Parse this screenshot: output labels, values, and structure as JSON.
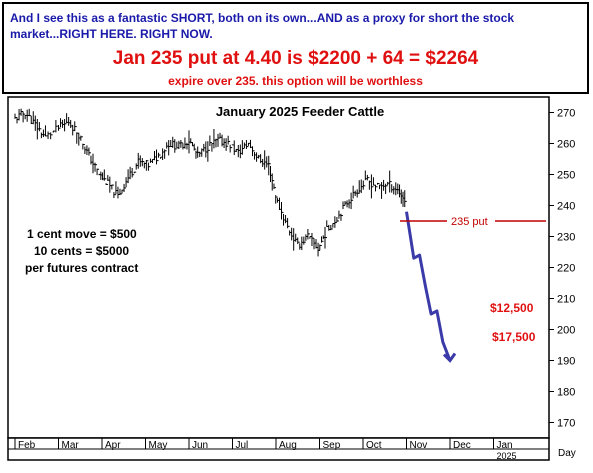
{
  "header": {
    "line1": "And I see this as a fantastic SHORT, both on its own...AND as a proxy for short the stock market...RIGHT HERE. RIGHT NOW.",
    "line2": "Jan 235 put at 4.40 is $2200 + 64 = $2264",
    "line3": "expire over 235. this option will be worthless"
  },
  "annotations": {
    "left_note": [
      "1 cent move = $500",
      "10 cents = $5000",
      "per futures contract"
    ],
    "put_label": "235 put",
    "target1": "$12,500",
    "target2": "$17,500"
  },
  "colors": {
    "header_blue": "#1a1aaa",
    "accent_red": "#e01010",
    "projection_blue": "#3a3aa8",
    "put_line_red": "#c00000"
  },
  "chart_data": {
    "type": "line",
    "title": "January 2025 Feeder Cattle",
    "xlabel": "Day",
    "ylabel": "",
    "ylim": [
      165,
      275
    ],
    "yticks": [
      170,
      180,
      190,
      200,
      210,
      220,
      230,
      240,
      250,
      260,
      270
    ],
    "x_ticks": [
      "Feb",
      "Mar",
      "Apr",
      "May",
      "Jun",
      "Jul",
      "Aug",
      "Sep",
      "Oct",
      "Nov",
      "Dec",
      "Jan"
    ],
    "x_sublabel": "2025",
    "grid": false,
    "series": [
      {
        "style": "ohlc-bars",
        "x": [
          "Feb 1",
          "Feb 8",
          "Feb 15",
          "Feb 22",
          "Mar 1",
          "Mar 8",
          "Mar 15",
          "Mar 22",
          "Mar 29",
          "Apr 5",
          "Apr 12",
          "Apr 19",
          "Apr 26",
          "May 3",
          "May 10",
          "May 17",
          "May 24",
          "May 31",
          "Jun 7",
          "Jun 14",
          "Jun 21",
          "Jun 28",
          "Jul 5",
          "Jul 12",
          "Jul 19",
          "Jul 26",
          "Aug 2",
          "Aug 9",
          "Aug 16",
          "Aug 23",
          "Aug 30",
          "Sep 6",
          "Sep 13",
          "Sep 20",
          "Sep 27",
          "Oct 4",
          "Oct 11",
          "Oct 18",
          "Oct 25",
          "Nov 1"
        ],
        "values": [
          268,
          270,
          266,
          262,
          265,
          267,
          263,
          256,
          250,
          247,
          243,
          249,
          254,
          253,
          256,
          260,
          259,
          261,
          256,
          259,
          261,
          260,
          257,
          260,
          255,
          253,
          241,
          233,
          227,
          230,
          226,
          232,
          236,
          241,
          245,
          248,
          246,
          247,
          245,
          241
        ]
      },
      {
        "style": "projection",
        "x": [
          "Nov 1",
          "Nov 6",
          "Nov 10",
          "Nov 14",
          "Nov 18",
          "Nov 22",
          "Nov 26",
          "Dec 1"
        ],
        "values": [
          238,
          223,
          224,
          214,
          205,
          206,
          196,
          190
        ]
      }
    ],
    "reference_lines": [
      {
        "label": "235 put",
        "y": 235
      }
    ],
    "text_annotations": [
      {
        "text": "$12,500",
        "y": 210
      },
      {
        "text": "$17,500",
        "y": 202
      }
    ]
  }
}
